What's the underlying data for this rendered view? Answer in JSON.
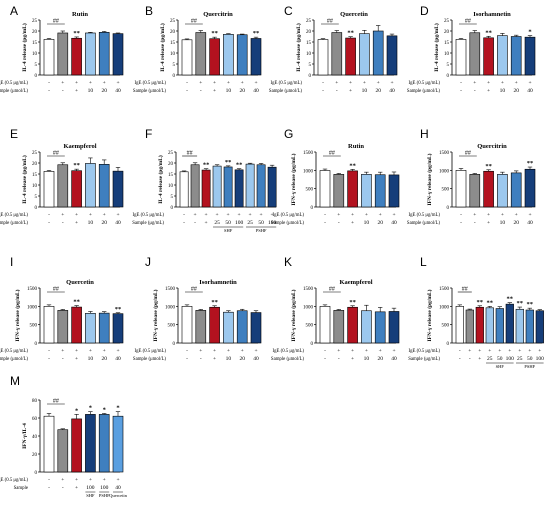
{
  "colors": {
    "white": "#ffffff",
    "gray": "#8c8c8c",
    "red": "#b3121f",
    "lightblue": "#9cc8ee",
    "midblue": "#3f7fbf",
    "darkblue": "#163e7a",
    "blue5": "#5a9fe0"
  },
  "chart_data": [
    {
      "panel": "A",
      "type": "bar",
      "title": "Rutin",
      "ylabel": "IL-4 release (pg/mL)",
      "ylim": [
        0,
        25
      ],
      "yticks": [
        0,
        5,
        10,
        15,
        20,
        25
      ],
      "values": [
        16.2,
        19.1,
        16.7,
        19.1,
        19.4,
        18.8
      ],
      "errors": [
        0.4,
        0.9,
        0.6,
        0.3,
        0.4,
        0.3
      ],
      "fills": [
        "white",
        "gray",
        "red",
        "lightblue",
        "midblue",
        "darkblue"
      ],
      "sig": [
        "",
        "##",
        "**",
        "",
        "",
        ""
      ],
      "ige": [
        "-",
        "+",
        "+",
        "+",
        "+",
        "+"
      ],
      "sample": [
        "-",
        "-",
        "+",
        "10",
        "20",
        "40"
      ]
    },
    {
      "panel": "B",
      "type": "bar",
      "title": "Quercitrin",
      "ylabel": "IL-4 release (pg/mL)",
      "ylim": [
        0,
        25
      ],
      "yticks": [
        0,
        5,
        10,
        15,
        20,
        25
      ],
      "values": [
        16.0,
        19.3,
        16.5,
        18.5,
        18.3,
        16.6
      ],
      "errors": [
        0.4,
        0.9,
        0.7,
        0.3,
        0.3,
        0.6
      ],
      "fills": [
        "white",
        "gray",
        "red",
        "lightblue",
        "midblue",
        "darkblue"
      ],
      "sig": [
        "",
        "##",
        "**",
        "",
        "",
        "**"
      ],
      "ige": [
        "-",
        "+",
        "+",
        "+",
        "+",
        "+"
      ],
      "sample": [
        "-",
        "-",
        "+",
        "10",
        "20",
        "40"
      ]
    },
    {
      "panel": "C",
      "type": "bar",
      "title": "Quercetin",
      "ylabel": "IL-4 release (pg/mL)",
      "ylim": [
        0,
        25
      ],
      "yticks": [
        0,
        5,
        10,
        15,
        20,
        25
      ],
      "values": [
        16.1,
        19.3,
        16.8,
        18.8,
        20.0,
        17.8
      ],
      "errors": [
        0.4,
        0.9,
        0.6,
        1.5,
        2.5,
        0.8
      ],
      "fills": [
        "white",
        "gray",
        "red",
        "lightblue",
        "midblue",
        "darkblue"
      ],
      "sig": [
        "",
        "##",
        "**",
        "",
        "",
        ""
      ],
      "ige": [
        "-",
        "+",
        "+",
        "+",
        "+",
        "+"
      ],
      "sample": [
        "-",
        "-",
        "+",
        "10",
        "20",
        "40"
      ]
    },
    {
      "panel": "D",
      "type": "bar",
      "title": "Isorhamnetin",
      "ylabel": "IL-4 release (pg/mL)",
      "ylim": [
        0,
        25
      ],
      "yticks": [
        0,
        5,
        10,
        15,
        20,
        25
      ],
      "values": [
        16.2,
        19.2,
        16.9,
        17.9,
        17.5,
        17.2
      ],
      "errors": [
        0.4,
        1.0,
        0.7,
        1.0,
        0.6,
        0.7
      ],
      "fills": [
        "white",
        "gray",
        "red",
        "lightblue",
        "midblue",
        "darkblue"
      ],
      "sig": [
        "",
        "##",
        "**",
        "",
        "",
        "*"
      ],
      "ige": [
        "-",
        "+",
        "+",
        "+",
        "+",
        "+"
      ],
      "sample": [
        "-",
        "-",
        "+",
        "10",
        "20",
        "40"
      ]
    },
    {
      "panel": "E",
      "type": "bar",
      "title": "Kaempferol",
      "ylabel": "IL-4 release (pg/mL)",
      "ylim": [
        0,
        25
      ],
      "yticks": [
        0,
        5,
        10,
        15,
        20,
        25
      ],
      "values": [
        16.2,
        19.2,
        16.5,
        19.8,
        19.4,
        16.3
      ],
      "errors": [
        0.4,
        0.9,
        0.7,
        2.5,
        2.0,
        1.7
      ],
      "fills": [
        "white",
        "gray",
        "red",
        "lightblue",
        "midblue",
        "darkblue"
      ],
      "sig": [
        "",
        "##",
        "**",
        "",
        "",
        ""
      ],
      "ige": [
        "-",
        "+",
        "+",
        "+",
        "+",
        "+"
      ],
      "sample": [
        "-",
        "-",
        "+",
        "10",
        "20",
        "40"
      ]
    },
    {
      "panel": "F",
      "type": "bar",
      "title": "",
      "ylabel": "IL-4 release (pg/mL)",
      "ylim": [
        0,
        25
      ],
      "yticks": [
        0,
        5,
        10,
        15,
        20,
        25
      ],
      "values": [
        16.0,
        19.2,
        16.8,
        18.6,
        18.2,
        16.9,
        19.5,
        19.2,
        18.1
      ],
      "errors": [
        0.4,
        0.9,
        0.6,
        0.6,
        0.5,
        0.5,
        0.4,
        0.6,
        0.9
      ],
      "fills": [
        "white",
        "gray",
        "red",
        "lightblue",
        "midblue",
        "darkblue",
        "lightblue",
        "midblue",
        "darkblue"
      ],
      "sig": [
        "",
        "##",
        "**",
        "",
        "**",
        "**",
        "",
        "",
        ""
      ],
      "ige": [
        "-",
        "+",
        "+",
        "+",
        "+",
        "+",
        "+",
        "+",
        "+"
      ],
      "sample": [
        "-",
        "-",
        "+",
        "25",
        "50",
        "100",
        "25",
        "50",
        "100"
      ],
      "groups": [
        {
          "label": "SHF",
          "from": 3,
          "to": 5
        },
        {
          "label": "PSHF",
          "from": 6,
          "to": 8
        }
      ]
    },
    {
      "panel": "G",
      "type": "bar",
      "title": "Rutin",
      "ylabel": "IFN-γ release (pg/mL)",
      "ylim": [
        0,
        1500
      ],
      "yticks": [
        0,
        500,
        1000,
        1500
      ],
      "values": [
        995,
        890,
        985,
        890,
        880,
        875
      ],
      "errors": [
        40,
        25,
        40,
        60,
        70,
        80
      ],
      "fills": [
        "white",
        "gray",
        "red",
        "lightblue",
        "midblue",
        "darkblue"
      ],
      "sig": [
        "",
        "##",
        "**",
        "",
        "",
        ""
      ],
      "ige": [
        "-",
        "+",
        "+",
        "+",
        "+",
        "+"
      ],
      "sample": [
        "-",
        "-",
        "+",
        "10",
        "20",
        "40"
      ]
    },
    {
      "panel": "H",
      "type": "bar",
      "title": "Quercitrin",
      "ylabel": "IFN-γ release (pg/mL)",
      "ylim": [
        0,
        1500
      ],
      "yticks": [
        0,
        500,
        1000,
        1500
      ],
      "values": [
        1000,
        890,
        975,
        890,
        930,
        1030
      ],
      "errors": [
        50,
        25,
        40,
        60,
        55,
        60
      ],
      "fills": [
        "white",
        "gray",
        "red",
        "lightblue",
        "midblue",
        "darkblue"
      ],
      "sig": [
        "",
        "##",
        "**",
        "",
        "",
        "**"
      ],
      "ige": [
        "-",
        "+",
        "+",
        "+",
        "+",
        "+"
      ],
      "sample": [
        "-",
        "-",
        "+",
        "10",
        "20",
        "40"
      ]
    },
    {
      "panel": "I",
      "type": "bar",
      "title": "Quercetin",
      "ylabel": "IFN-γ release (pg/mL)",
      "ylim": [
        0,
        1500
      ],
      "yticks": [
        0,
        500,
        1000,
        1500
      ],
      "values": [
        1000,
        890,
        980,
        810,
        815,
        800
      ],
      "errors": [
        40,
        25,
        40,
        50,
        40,
        25
      ],
      "fills": [
        "white",
        "gray",
        "red",
        "lightblue",
        "midblue",
        "darkblue"
      ],
      "sig": [
        "",
        "##",
        "**",
        "",
        "",
        "**"
      ],
      "ige": [
        "-",
        "+",
        "+",
        "+",
        "+",
        "+"
      ],
      "sample": [
        "-",
        "-",
        "+",
        "10",
        "20",
        "40"
      ]
    },
    {
      "panel": "J",
      "type": "bar",
      "title": "Isorhamnetin",
      "ylabel": "IFN-γ release (pg/mL)",
      "ylim": [
        0,
        1500
      ],
      "yticks": [
        0,
        500,
        1000,
        1500
      ],
      "values": [
        1000,
        890,
        975,
        840,
        880,
        830
      ],
      "errors": [
        40,
        25,
        40,
        40,
        40,
        50
      ],
      "fills": [
        "white",
        "gray",
        "red",
        "lightblue",
        "midblue",
        "darkblue"
      ],
      "sig": [
        "",
        "##",
        "**",
        "",
        "",
        ""
      ],
      "ige": [
        "-",
        "+",
        "+",
        "+",
        "+",
        "+"
      ],
      "sample": [
        "-",
        "-",
        "+",
        "10",
        "20",
        "40"
      ]
    },
    {
      "panel": "K",
      "type": "bar",
      "title": "Kaempferol",
      "ylabel": "IFN-γ release (pg/mL)",
      "ylim": [
        0,
        1500
      ],
      "yticks": [
        0,
        500,
        1000,
        1500
      ],
      "values": [
        1000,
        890,
        975,
        880,
        850,
        860
      ],
      "errors": [
        40,
        25,
        40,
        150,
        120,
        90
      ],
      "fills": [
        "white",
        "gray",
        "red",
        "lightblue",
        "midblue",
        "darkblue"
      ],
      "sig": [
        "",
        "##",
        "**",
        "",
        "",
        ""
      ],
      "ige": [
        "-",
        "+",
        "+",
        "+",
        "+",
        "+"
      ],
      "sample": [
        "-",
        "-",
        "+",
        "10",
        "20",
        "40"
      ]
    },
    {
      "panel": "L",
      "type": "bar",
      "title": "",
      "ylabel": "IFN-γ release (pg/mL)",
      "ylim": [
        0,
        1500
      ],
      "yticks": [
        0,
        500,
        1000,
        1500
      ],
      "values": [
        1000,
        900,
        975,
        960,
        940,
        1060,
        920,
        900,
        880
      ],
      "errors": [
        40,
        25,
        40,
        40,
        50,
        40,
        60,
        50,
        30
      ],
      "fills": [
        "white",
        "gray",
        "red",
        "lightblue",
        "midblue",
        "darkblue",
        "lightblue",
        "midblue",
        "darkblue"
      ],
      "sig": [
        "",
        "##",
        "**",
        "**",
        "",
        "**",
        "**",
        "**",
        ""
      ],
      "ige": [
        "-",
        "+",
        "+",
        "+",
        "+",
        "+",
        "+",
        "+",
        "+"
      ],
      "sample": [
        "-",
        "-",
        "+",
        "25",
        "50",
        "100",
        "25",
        "50",
        "100"
      ],
      "groups": [
        {
          "label": "SHF",
          "from": 3,
          "to": 5
        },
        {
          "label": "PSHF",
          "from": 6,
          "to": 8
        }
      ]
    },
    {
      "panel": "M",
      "type": "bar",
      "title": "",
      "ylabel": "IFN-γ/IL-4",
      "ylim": [
        0,
        80
      ],
      "yticks": [
        0,
        20,
        40,
        60,
        80
      ],
      "values": [
        62,
        47,
        59,
        64,
        64,
        62
      ],
      "errors": [
        3,
        1,
        5,
        3,
        1,
        5
      ],
      "fills": [
        "white",
        "gray",
        "red",
        "darkblue",
        "midblue",
        "blue5"
      ],
      "sig": [
        "",
        "##",
        "*",
        "*",
        "*",
        "*"
      ],
      "ige": [
        "-",
        "+",
        "+",
        "+",
        "+",
        "+"
      ],
      "sample": [
        "-",
        "-",
        "+",
        "100",
        "100",
        "40"
      ],
      "groups": [
        {
          "label": "SHF",
          "from": 3,
          "to": 3
        },
        {
          "label": "PSHF",
          "from": 4,
          "to": 4
        },
        {
          "label": "Quercetin",
          "from": 5,
          "to": 5
        }
      ]
    }
  ],
  "row_labels": {
    "ige_standard": "IgE (0.5 μg/mL)",
    "sample_standard": "Sample (μmol/L)",
    "sample_conc": "Sample (μg/mL)",
    "sample_plain": "Sample"
  },
  "row_label_keys": {
    "A": "sample_standard",
    "B": "sample_standard",
    "C": "sample_standard",
    "D": "sample_standard",
    "E": "sample_standard",
    "F": "sample_conc",
    "G": "sample_standard",
    "H": "sample_standard",
    "I": "sample_standard",
    "J": "sample_standard",
    "K": "sample_standard",
    "L": "sample_conc",
    "M": "sample_plain"
  }
}
